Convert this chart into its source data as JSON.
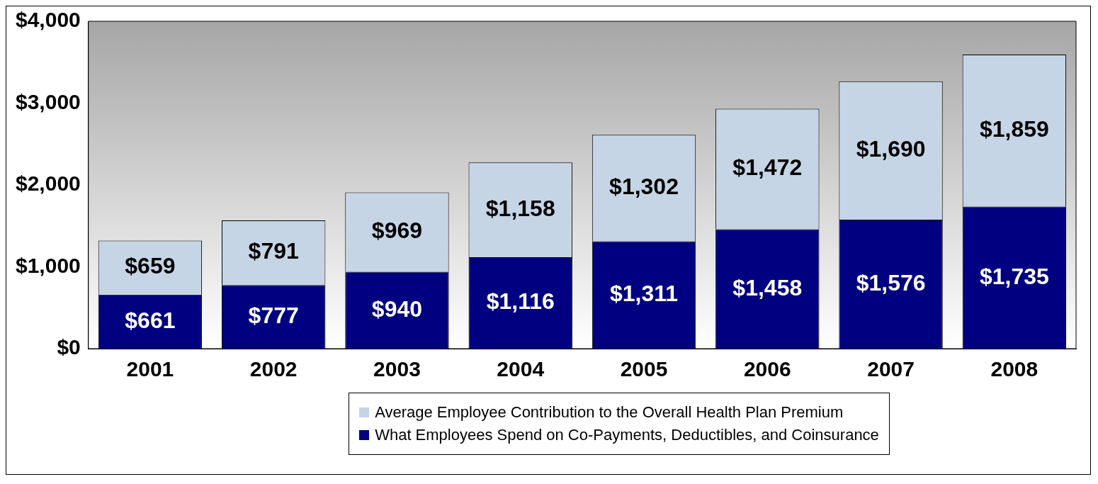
{
  "chart_data": {
    "type": "bar",
    "stacked": true,
    "legend": "bottom",
    "grid": false,
    "categories": [
      "2001",
      "2002",
      "2003",
      "2004",
      "2005",
      "2006",
      "2007",
      "2008"
    ],
    "series": [
      {
        "name": "What Employees Spend on Co-Payments, Deductibles, and Coinsurance",
        "color": "#000080",
        "values": [
          661,
          777,
          940,
          1116,
          1311,
          1458,
          1576,
          1735
        ],
        "value_labels": [
          "$661",
          "$777",
          "$940",
          "$1,116",
          "$1,311",
          "$1,458",
          "$1,576",
          "$1,735"
        ]
      },
      {
        "name": "Average Employee Contribution to the Overall Health Plan Premium",
        "color": "#c5d5e5",
        "values": [
          659,
          791,
          969,
          1158,
          1302,
          1472,
          1690,
          1859
        ],
        "value_labels": [
          "$659",
          "$791",
          "$969",
          "$1,158",
          "$1,302",
          "$1,472",
          "$1,690",
          "$1,859"
        ]
      }
    ],
    "ylim": [
      0,
      4000
    ],
    "yticks": [
      {
        "value": 0,
        "label": "$0"
      },
      {
        "value": 1000,
        "label": "$1,000"
      },
      {
        "value": 2000,
        "label": "$2,000"
      },
      {
        "value": 3000,
        "label": "$3,000"
      },
      {
        "value": 4000,
        "label": "$4,000"
      }
    ]
  }
}
